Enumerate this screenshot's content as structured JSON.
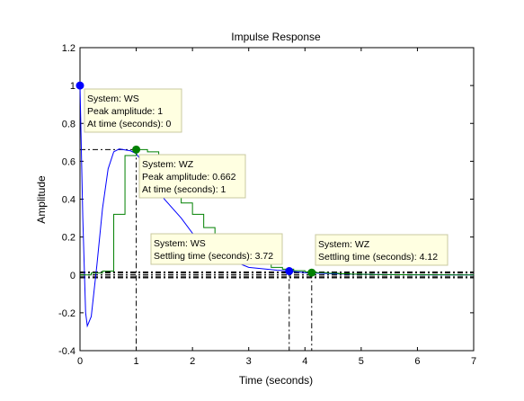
{
  "chart_data": {
    "type": "line",
    "title": "Impulse Response",
    "xlabel": "Time (seconds)",
    "ylabel": "Amplitude",
    "xlim": [
      0,
      7
    ],
    "ylim": [
      -0.4,
      1.2
    ],
    "xticks": [
      0,
      1,
      2,
      3,
      4,
      5,
      6,
      7
    ],
    "yticks": [
      -0.4,
      -0.2,
      0,
      0.2,
      0.4,
      0.6,
      0.8,
      1,
      1.2
    ],
    "xtick_labels": [
      "0",
      "1",
      "2",
      "3",
      "4",
      "5",
      "6",
      "7"
    ],
    "ytick_labels": [
      "-0.4",
      "-0.2",
      "0",
      "0.2",
      "0.4",
      "0.6",
      "0.8",
      "1",
      "1.2"
    ],
    "grid": false,
    "series": [
      {
        "name": "WS",
        "style": "continuous",
        "color": "#0000ff",
        "x": [
          0,
          0.05,
          0.1,
          0.13,
          0.2,
          0.3,
          0.4,
          0.5,
          0.6,
          0.7,
          0.8,
          0.9,
          1.0,
          1.1,
          1.2,
          1.3,
          1.5,
          1.8,
          2.0,
          2.5,
          3.0,
          3.5,
          3.72,
          4.0,
          4.5,
          5.0,
          5.5,
          6.0,
          7.0
        ],
        "y": [
          1.0,
          0.3,
          -0.2,
          -0.27,
          -0.22,
          0.05,
          0.35,
          0.56,
          0.65,
          0.665,
          0.66,
          0.655,
          0.64,
          0.6,
          0.55,
          0.5,
          0.4,
          0.3,
          0.22,
          0.1,
          0.04,
          0.025,
          0.02,
          0.012,
          0.006,
          0.003,
          0.001,
          0.0005,
          0.0
        ]
      },
      {
        "name": "WZ",
        "style": "stairs",
        "color": "#008000",
        "x": [
          0,
          0.2,
          0.4,
          0.6,
          0.8,
          1.0,
          1.2,
          1.4,
          1.6,
          1.8,
          2.0,
          2.2,
          2.4,
          2.6,
          2.8,
          3.0,
          3.2,
          3.4,
          3.6,
          3.8,
          4.0,
          4.2,
          4.4,
          4.6,
          4.8,
          5.0,
          5.2,
          5.4,
          5.6,
          5.8,
          6.0,
          6.2,
          6.4,
          6.6,
          6.8,
          7.0
        ],
        "y": [
          0,
          0.01,
          0.02,
          0.32,
          0.63,
          0.662,
          0.65,
          0.52,
          0.44,
          0.38,
          0.32,
          0.25,
          0.2,
          0.16,
          0.12,
          0.09,
          0.06,
          0.04,
          0.03,
          0.022,
          0.016,
          0.012,
          0.009,
          0.006,
          0.004,
          0.003,
          0.002,
          0.0015,
          0.001,
          0.0008,
          0.0005,
          0.0004,
          0.0003,
          0.0002,
          0.0001,
          0
        ]
      }
    ],
    "reference_lines": {
      "steady_state": 0,
      "settling_band_upper": 0.015,
      "settling_band_lower": -0.015,
      "settling_band_upper_2": 0.01,
      "settling_band_lower_2": -0.01,
      "ws_peak_guide": {
        "x": 1.0,
        "y": 0.662
      }
    },
    "markers": [
      {
        "series": "WS",
        "x": 0,
        "y": 1.0,
        "color": "#0000ff"
      },
      {
        "series": "WZ",
        "x": 1.0,
        "y": 0.662,
        "color": "#008000"
      },
      {
        "series": "WS",
        "x": 3.72,
        "y": 0.02,
        "color": "#0000ff"
      },
      {
        "series": "WZ",
        "x": 4.12,
        "y": 0.012,
        "color": "#008000"
      }
    ],
    "annotations": [
      {
        "name": "ws-peak",
        "anchor": {
          "x": 0,
          "y": 1.0
        },
        "lines": [
          "System: WS",
          "Peak amplitude: 1",
          "At time (seconds): 0"
        ]
      },
      {
        "name": "wz-peak",
        "anchor": {
          "x": 1.0,
          "y": 0.662
        },
        "lines": [
          "System: WZ",
          "Peak amplitude: 0.662",
          "At time (seconds): 1"
        ]
      },
      {
        "name": "ws-settling",
        "anchor": {
          "x": 3.72,
          "y": 0.02
        },
        "lines": [
          "System: WS",
          "Settling time (seconds): 3.72"
        ]
      },
      {
        "name": "wz-settling",
        "anchor": {
          "x": 4.12,
          "y": 0.012
        },
        "lines": [
          "System: WZ",
          "Settling time (seconds): 4.12"
        ]
      }
    ]
  }
}
